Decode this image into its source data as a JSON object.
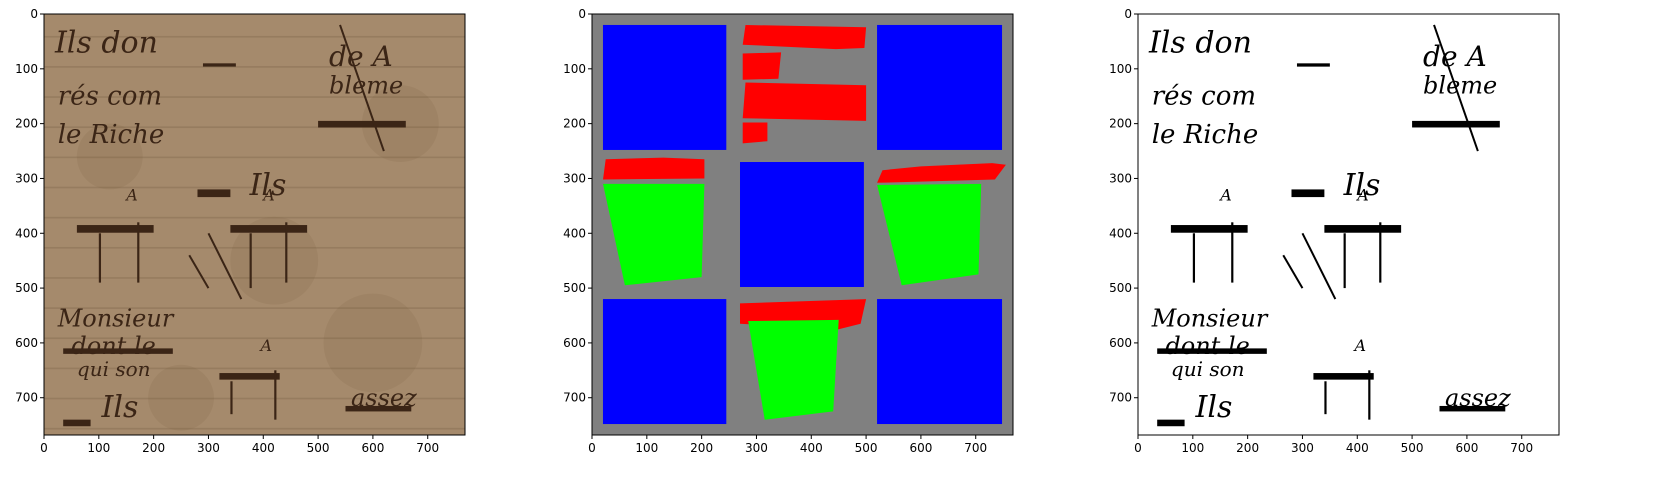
{
  "figure": {
    "panels": [
      {
        "name": "document-photo",
        "image": "aged manuscript page with handwritten ink",
        "xticks": [
          "0",
          "100",
          "200",
          "300",
          "400",
          "500",
          "600",
          "700"
        ],
        "yticks": [
          "0",
          "100",
          "200",
          "300",
          "400",
          "500",
          "600",
          "700"
        ],
        "handwriting": [
          "Ils don",
          "rés com",
          "le Riche",
          "de A",
          "bleme",
          "Ils",
          "Ils",
          "Monsieur",
          "dont le",
          "qui son",
          "assez",
          "A",
          "A",
          "A"
        ],
        "colors": {
          "paper": "#a58a6c",
          "ink": "#3b2516"
        }
      },
      {
        "name": "segmentation-mask",
        "image": "color-coded region mask",
        "xticks": [
          "0",
          "100",
          "200",
          "300",
          "400",
          "500",
          "600",
          "700"
        ],
        "yticks": [
          "0",
          "100",
          "200",
          "300",
          "400",
          "500",
          "600",
          "700"
        ],
        "colors": {
          "background": "#808080",
          "blue": "#0000ff",
          "red": "#ff0000",
          "green": "#00ff00"
        }
      },
      {
        "name": "binarized-document",
        "image": "black and white binarized manuscript",
        "xticks": [
          "0",
          "100",
          "200",
          "300",
          "400",
          "500",
          "600",
          "700"
        ],
        "yticks": [
          "0",
          "100",
          "200",
          "300",
          "400",
          "500",
          "600",
          "700"
        ],
        "handwriting": [
          "Ils don",
          "rés com",
          "le Riche",
          "de A",
          "bleme",
          "Ils",
          "Ils",
          "Monsieur",
          "dont le",
          "qui son",
          "assez",
          "A",
          "A",
          "A"
        ],
        "colors": {
          "paper": "#ffffff",
          "ink": "#000000"
        }
      }
    ]
  }
}
